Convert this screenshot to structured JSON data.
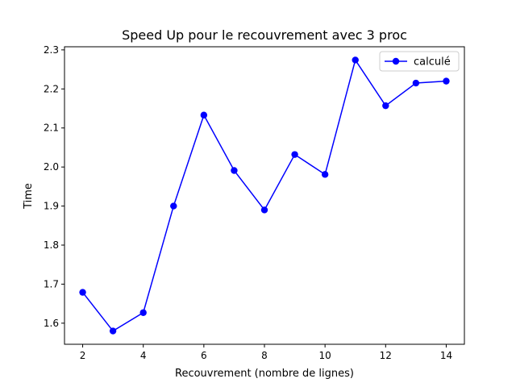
{
  "chart_data": {
    "type": "line",
    "title": "Speed Up pour le recouvrement avec 3 proc",
    "xlabel": "Recouvrement (nombre de lignes)",
    "ylabel": "Time",
    "xlim": [
      1.4,
      14.6
    ],
    "ylim": [
      1.546,
      2.308
    ],
    "xticks": [
      2,
      4,
      6,
      8,
      10,
      12,
      14
    ],
    "yticks": [
      1.6,
      1.7,
      1.8,
      1.9,
      2.0,
      2.1,
      2.2,
      2.3
    ],
    "ytick_labels": [
      "1.6",
      "1.7",
      "1.8",
      "1.9",
      "2.0",
      "2.1",
      "2.2",
      "2.3"
    ],
    "grid": false,
    "legend_position": "top-right",
    "series": [
      {
        "name": "calculé",
        "color": "#0000ff",
        "marker": "circle",
        "x": [
          2,
          3,
          4,
          5,
          6,
          7,
          8,
          9,
          10,
          11,
          12,
          13,
          14
        ],
        "y": [
          1.679,
          1.58,
          1.627,
          1.9,
          2.133,
          1.991,
          1.89,
          2.032,
          1.981,
          2.274,
          2.157,
          2.215,
          2.22
        ]
      }
    ]
  }
}
